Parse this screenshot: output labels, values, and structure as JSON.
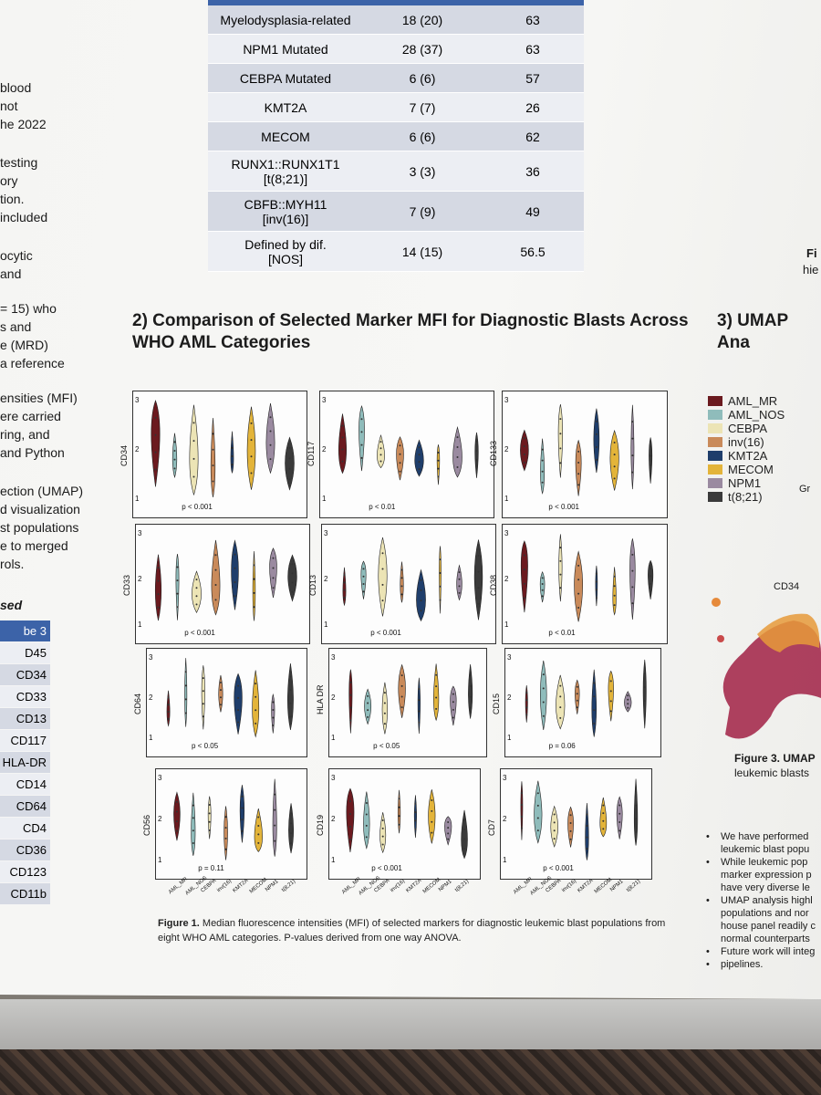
{
  "table": {
    "rows": [
      [
        "Myelodysplasia-related",
        "18 (20)",
        "63"
      ],
      [
        "NPM1 Mutated",
        "28 (37)",
        "63"
      ],
      [
        "CEBPA Mutated",
        "6 (6)",
        "57"
      ],
      [
        "KMT2A",
        "7 (7)",
        "26"
      ],
      [
        "MECOM",
        "6 (6)",
        "62"
      ],
      [
        "RUNX1::RUNX1T1\n[t(8;21)]",
        "3 (3)",
        "36"
      ],
      [
        "CBFB::MYH11\n[inv(16)]",
        "7 (9)",
        "49"
      ],
      [
        "Defined by dif.\n[NOS]",
        "14 (15)",
        "56.5"
      ]
    ]
  },
  "left_text": [
    "blood",
    "not",
    "he 2022",
    "testing",
    "ory",
    "tion.",
    " included",
    "ocytic",
    "and",
    "= 15) who",
    "s and",
    "e (MRD)",
    "a reference",
    "ensities (MFI)",
    "ere carried",
    "ring, and",
    "and Python",
    "ection (UMAP)",
    "d visualization",
    "st populations",
    "e to merged",
    "rols.",
    "sed"
  ],
  "markers": [
    "be 3",
    "D45",
    "CD34",
    "CD33",
    "CD13",
    "CD117",
    "HLA-DR",
    "CD14",
    "CD64",
    "CD4",
    "CD36",
    "CD123",
    "CD11b"
  ],
  "section2": {
    "title_line1": "2) Comparison of Selected Marker MFI for Diagnostic Blasts Across",
    "title_line2": "WHO AML Categories"
  },
  "section3": {
    "title": "3) UMAP Ana"
  },
  "figure2_cut": {
    "line1": "Fi",
    "line2": "hie",
    "gr": "Gr"
  },
  "colors": {
    "AML_MR": "#6b1a1f",
    "AML_NOS": "#8fbcbb",
    "CEBPA": "#ece4b5",
    "inv16": "#c98a5a",
    "KMT2A": "#1f3e6b",
    "MECOM": "#e3b43a",
    "NPM1": "#9a8aa0",
    "t821": "#3a3a3a"
  },
  "legend": [
    "AML_MR",
    "AML_NOS",
    "CEBPA",
    "inv(16)",
    "KMT2A",
    "MECOM",
    "NPM1",
    "t(8;21)"
  ],
  "categories": [
    "AML_MR",
    "AML_NOS",
    "CEBPA",
    "inv(16)",
    "KMT2A",
    "MECOM",
    "NPM1",
    "t(8;21)"
  ],
  "axis_ticks": [
    "3",
    "2",
    "1"
  ],
  "panels": [
    {
      "marker": "CD34",
      "p": "p < 0.001"
    },
    {
      "marker": "CD117",
      "p": "p < 0.01"
    },
    {
      "marker": "CD133",
      "p": "p < 0.001"
    },
    {
      "marker": "CD33",
      "p": "p < 0.001"
    },
    {
      "marker": "CD13",
      "p": "p < 0.001"
    },
    {
      "marker": "CD38",
      "p": "p < 0.01"
    },
    {
      "marker": "CD64",
      "p": "p < 0.05"
    },
    {
      "marker": "HLA DR",
      "p": "p < 0.05"
    },
    {
      "marker": "CD15",
      "p": "p = 0.06"
    },
    {
      "marker": "CD56",
      "p": "p = 0.11"
    },
    {
      "marker": "CD19",
      "p": "p < 0.001"
    },
    {
      "marker": "CD7",
      "p": "p < 0.001"
    }
  ],
  "caption": {
    "bold": "Figure 1.",
    "text": " Median fluorescence intensities (MFI) of selected markers for diagnostic leukemic blast populations from eight WHO AML categories. P-values derived from one way ANOVA."
  },
  "umap_label": "CD34",
  "figure3": {
    "line1": "Figure 3. UMAP",
    "line2": "leukemic blasts"
  },
  "bullets": [
    "We have performed",
    "leukemic blast popu",
    "While leukemic pop",
    "marker expression p",
    "have very diverse le",
    "UMAP analysis highl",
    "populations and nor",
    "house panel readily c",
    "normal counterparts",
    "Future work will integ",
    "pipelines."
  ]
}
